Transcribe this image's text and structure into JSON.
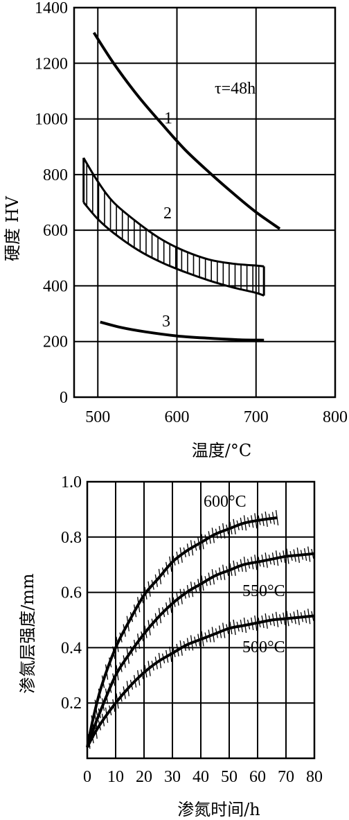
{
  "chart_data": [
    {
      "type": "line",
      "title": "",
      "xlabel": "温度/°C",
      "ylabel": "硬度 HV",
      "xlim": [
        470,
        800
      ],
      "ylim": [
        0,
        1400
      ],
      "xticks": [
        "500",
        "600",
        "700",
        "800"
      ],
      "yticks": [
        "0",
        "200",
        "400",
        "600",
        "800",
        "1000",
        "1200",
        "1400"
      ],
      "grid": true,
      "annotation": "τ=48h",
      "series": [
        {
          "name": "1",
          "x": [
            495,
            520,
            550,
            580,
            610,
            640,
            670,
            700,
            730
          ],
          "y": [
            1310,
            1200,
            1085,
            985,
            890,
            810,
            735,
            665,
            605
          ]
        },
        {
          "name": "2",
          "kind": "band",
          "x": [
            482,
            500,
            520,
            550,
            580,
            610,
            640,
            670,
            700,
            710
          ],
          "upper": [
            860,
            775,
            700,
            628,
            568,
            525,
            495,
            480,
            473,
            470
          ],
          "lower": [
            700,
            640,
            590,
            530,
            485,
            450,
            420,
            395,
            375,
            365
          ]
        },
        {
          "name": "3",
          "x": [
            503,
            530,
            560,
            600,
            640,
            680,
            710
          ],
          "y": [
            270,
            250,
            235,
            220,
            212,
            206,
            205
          ]
        }
      ]
    },
    {
      "type": "line",
      "title": "",
      "xlabel": "渗氮时间/h",
      "ylabel": "渗氮层强度/mm",
      "xlim": [
        0,
        80
      ],
      "ylim": [
        0,
        1.0
      ],
      "xticks": [
        "0",
        "10",
        "20",
        "30",
        "40",
        "50",
        "60",
        "70",
        "80"
      ],
      "yticks": [
        "0.2",
        "0.4",
        "0.6",
        "0.8",
        "1.0"
      ],
      "grid": true,
      "series": [
        {
          "name": "600°C",
          "x": [
            0,
            2,
            5,
            10,
            15,
            20,
            25,
            30,
            35,
            40,
            45,
            50,
            55,
            60,
            67
          ],
          "y": [
            0.04,
            0.14,
            0.26,
            0.4,
            0.5,
            0.59,
            0.65,
            0.71,
            0.75,
            0.78,
            0.81,
            0.83,
            0.85,
            0.86,
            0.87
          ]
        },
        {
          "name": "550°C",
          "x": [
            0,
            2,
            5,
            10,
            15,
            20,
            25,
            30,
            35,
            40,
            45,
            50,
            55,
            60,
            65,
            70,
            75,
            80
          ],
          "y": [
            0.04,
            0.1,
            0.18,
            0.3,
            0.38,
            0.45,
            0.51,
            0.56,
            0.6,
            0.63,
            0.66,
            0.68,
            0.7,
            0.71,
            0.72,
            0.73,
            0.735,
            0.74
          ]
        },
        {
          "name": "500°C",
          "x": [
            0,
            2,
            5,
            10,
            15,
            20,
            25,
            30,
            35,
            40,
            45,
            50,
            55,
            60,
            65,
            70,
            75,
            80
          ],
          "y": [
            0.04,
            0.08,
            0.13,
            0.2,
            0.26,
            0.31,
            0.35,
            0.38,
            0.41,
            0.43,
            0.45,
            0.47,
            0.48,
            0.49,
            0.5,
            0.505,
            0.51,
            0.515
          ]
        }
      ]
    }
  ]
}
